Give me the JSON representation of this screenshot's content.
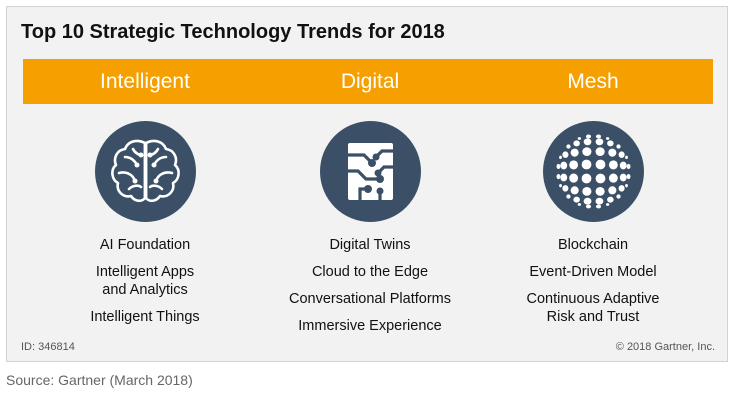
{
  "title": "Top 10 Strategic Technology Trends for 2018",
  "colors": {
    "band": "#f5a000",
    "icon_bg": "#3b5067",
    "panel_bg": "#f2f2f2"
  },
  "columns": [
    {
      "heading": "Intelligent",
      "icon": "brain-icon",
      "items": [
        "AI Foundation",
        "Intelligent Apps and Analytics",
        "Intelligent Things"
      ]
    },
    {
      "heading": "Digital",
      "icon": "circuit-chip-icon",
      "items": [
        "Digital Twins",
        "Cloud to the Edge",
        "Conversational Platforms",
        "Immersive Experience"
      ]
    },
    {
      "heading": "Mesh",
      "icon": "dotted-sphere-icon",
      "items": [
        "Blockchain",
        "Event-Driven Model",
        "Continuous Adaptive Risk and Trust"
      ]
    }
  ],
  "footer": {
    "id": "ID: 346814",
    "copyright": "© 2018 Gartner, Inc."
  },
  "source": "Source: Gartner (March 2018)"
}
